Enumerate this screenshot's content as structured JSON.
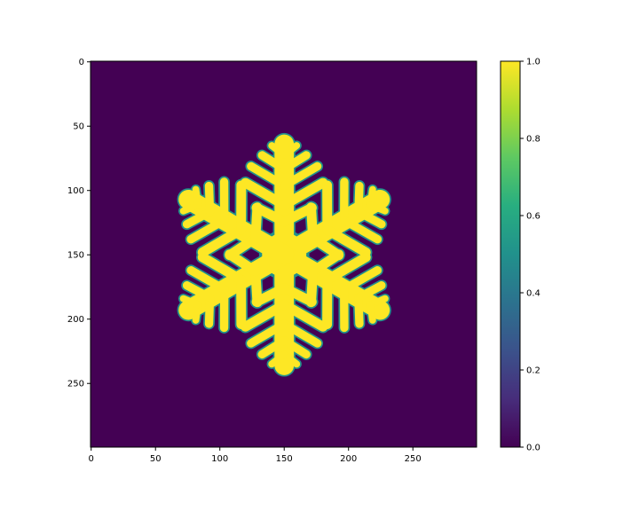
{
  "chart_data": {
    "type": "heatmap",
    "title": "",
    "xlabel": "",
    "ylabel": "",
    "image_size": [
      300,
      300
    ],
    "xlim": [
      0,
      299
    ],
    "ylim": [
      299,
      0
    ],
    "x_ticks": [
      "0",
      "50",
      "100",
      "150",
      "200",
      "250"
    ],
    "x_tick_values": [
      0,
      50,
      100,
      150,
      200,
      250
    ],
    "y_ticks": [
      "0",
      "50",
      "100",
      "150",
      "200",
      "250"
    ],
    "y_tick_values": [
      0,
      50,
      100,
      150,
      200,
      250
    ],
    "colormap": "viridis",
    "value_range": [
      0.0,
      1.0
    ],
    "colorbar": {
      "ticks": [
        "0.0",
        "0.2",
        "0.4",
        "0.6",
        "0.8",
        "1.0"
      ],
      "tick_values": [
        0.0,
        0.2,
        0.4,
        0.6,
        0.8,
        1.0
      ]
    },
    "content": {
      "shape": "six-armed dendritic snowflake",
      "center": [
        150,
        150
      ],
      "arm_tip_radius": 86,
      "arm_angles_deg": [
        90,
        30,
        -30,
        -90,
        -150,
        150
      ],
      "inside_value": 1.0,
      "background_value": 0.0
    },
    "grid": false,
    "legend": "none"
  },
  "colors": {
    "background_fill": "#440154",
    "snowflake_fill": "#fde725",
    "edge_fill": "#21918c",
    "axis_color": "#000000"
  }
}
